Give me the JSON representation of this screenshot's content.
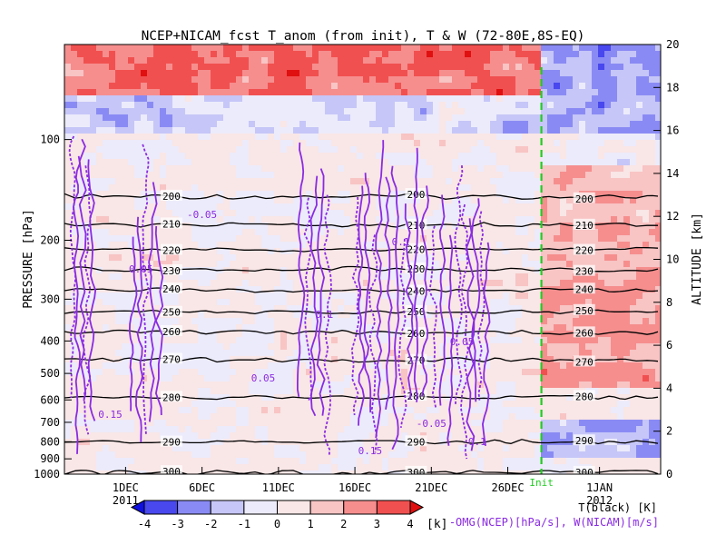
{
  "chart_data": {
    "type": "heatmap",
    "title": "NCEP+NICAM_fcst T_anom (from init), T & W  (72-80E,8S-EQ)",
    "ylabel": "PRESSURE [hPa]",
    "y2label": "ALTITUDE [km]",
    "x_ticks": [
      "1DEC",
      "6DEC",
      "11DEC",
      "16DEC",
      "21DEC",
      "26DEC",
      "1JAN"
    ],
    "x_tick_days": [
      1,
      6,
      11,
      16,
      21,
      26,
      32
    ],
    "x_year_labels": [
      "2011",
      "2012"
    ],
    "xlim_days": [
      -3,
      36
    ],
    "init_day": 28.2,
    "init_label": "Init",
    "pressure_ticks": [
      "100",
      "200",
      "300",
      "400",
      "500",
      "600",
      "700",
      "800",
      "900",
      "1000"
    ],
    "pressure_values": [
      100,
      200,
      300,
      400,
      500,
      600,
      700,
      800,
      900,
      1000
    ],
    "ylim_pressure": [
      1000,
      52
    ],
    "altitude_ticks": [
      "0",
      "2",
      "4",
      "6",
      "8",
      "10",
      "12",
      "14",
      "16",
      "18",
      "20"
    ],
    "altitude_values": [
      0,
      2,
      4,
      6,
      8,
      10,
      12,
      14,
      16,
      18,
      20
    ],
    "colorbar": {
      "ticks": [
        "-4",
        "-3",
        "-2",
        "-1",
        "0",
        "1",
        "2",
        "3",
        "4"
      ],
      "values": [
        -4,
        -3,
        -2,
        -1,
        0,
        1,
        2,
        3,
        4
      ],
      "colors": [
        "#1010e0",
        "#4848ee",
        "#8a8af4",
        "#c6c6f8",
        "#ecebfb",
        "#f9e6e6",
        "#f8c4c4",
        "#f68e8e",
        "#f15050",
        "#e01010"
      ],
      "unit": "[k]"
    },
    "temperature_contours": [
      {
        "label": "200",
        "pressure": 148
      },
      {
        "label": "210",
        "pressure": 180
      },
      {
        "label": "220",
        "pressure": 213
      },
      {
        "label": "230",
        "pressure": 244
      },
      {
        "label": "240",
        "pressure": 282
      },
      {
        "label": "250",
        "pressure": 327
      },
      {
        "label": "260",
        "pressure": 377
      },
      {
        "label": "270",
        "pressure": 455
      },
      {
        "label": "280",
        "pressure": 590
      },
      {
        "label": "290",
        "pressure": 800
      },
      {
        "label": "300",
        "pressure": 990
      }
    ],
    "w_contour_labels": [
      "0.05",
      "0.1",
      "0.15",
      "-0.05"
    ],
    "legend_t": "T(black) [K]",
    "legend_w": "-OMG(NCEP)[hPa/s], W(NICAM)[m/s]",
    "colors": {
      "t_contour": "#000000",
      "w_contour": "#8a2be2",
      "init_line": "#22cc22"
    }
  }
}
